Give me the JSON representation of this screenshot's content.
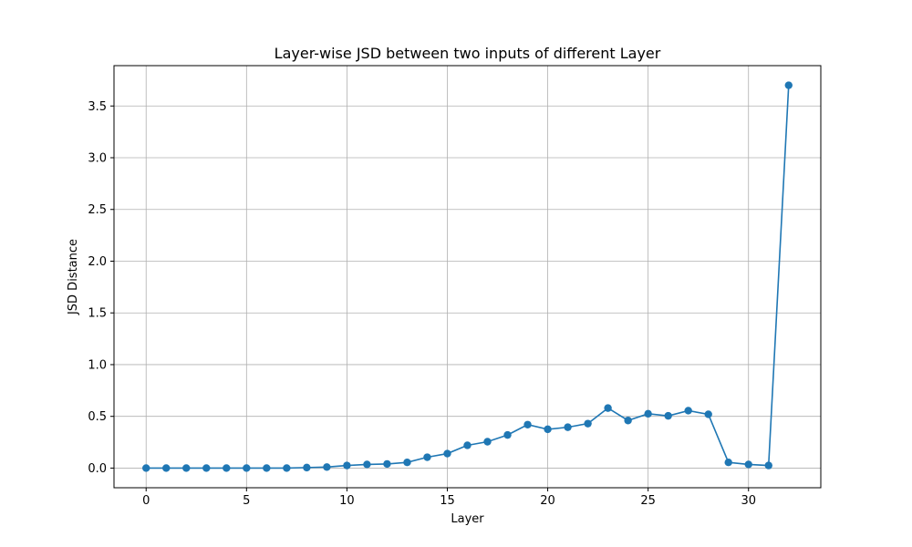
{
  "chart_data": {
    "type": "line",
    "title": "Layer-wise JSD between two inputs of different Layer",
    "xlabel": "Layer",
    "ylabel": "JSD Distance",
    "xlim": [
      -1.6,
      33.6
    ],
    "ylim": [
      -0.19,
      3.89
    ],
    "xticks": [
      0,
      5,
      10,
      15,
      20,
      25,
      30
    ],
    "yticks": [
      0.0,
      0.5,
      1.0,
      1.5,
      2.0,
      2.5,
      3.0,
      3.5
    ],
    "grid": true,
    "series": [
      {
        "name": "",
        "color": "#1f77b4",
        "marker": "circle",
        "x": [
          0,
          1,
          2,
          3,
          4,
          5,
          6,
          7,
          8,
          9,
          10,
          11,
          12,
          13,
          14,
          15,
          16,
          17,
          18,
          19,
          20,
          21,
          22,
          23,
          24,
          25,
          26,
          27,
          28,
          29,
          30,
          31,
          32
        ],
        "y": [
          0.0,
          0.0,
          0.0,
          0.0,
          0.0,
          0.0,
          0.0,
          0.0,
          0.005,
          0.01,
          0.025,
          0.035,
          0.04,
          0.055,
          0.105,
          0.14,
          0.22,
          0.255,
          0.32,
          0.42,
          0.375,
          0.395,
          0.43,
          0.58,
          0.46,
          0.525,
          0.505,
          0.555,
          0.52,
          0.055,
          0.035,
          0.025,
          3.7
        ]
      }
    ]
  }
}
